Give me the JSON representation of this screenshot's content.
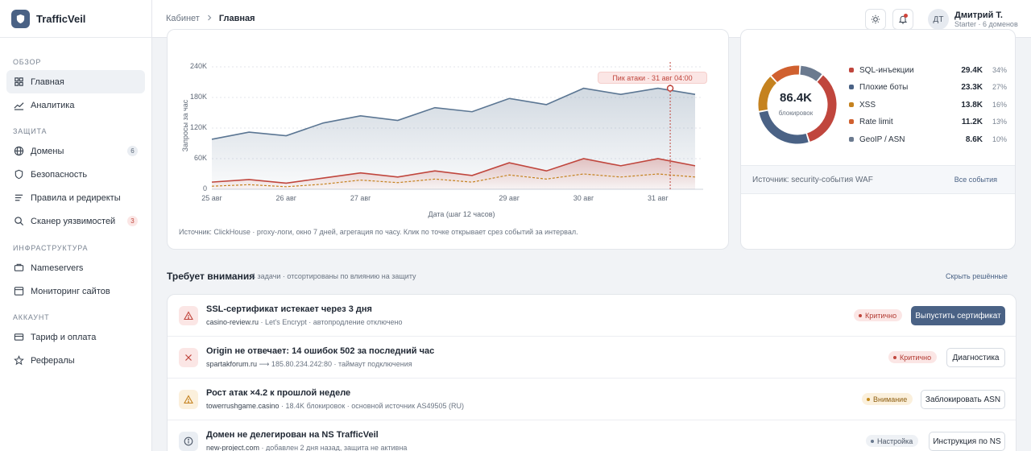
{
  "brand": {
    "name": "TrafficVeil"
  },
  "sidebar": {
    "sections": [
      {
        "title": "ОБЗОР"
      },
      {
        "title": "ЗАЩИТА"
      },
      {
        "title": "ИНФРАСТРУКТУРА"
      },
      {
        "title": "АККАУНТ"
      }
    ],
    "items": [
      {
        "label": "Главная",
        "icon": "home-icon",
        "active": true
      },
      {
        "label": "Аналитика",
        "icon": "chart-icon"
      },
      {
        "label": "Домены",
        "icon": "globe-icon",
        "badge": "6"
      },
      {
        "label": "Безопасность",
        "icon": "shield-icon"
      },
      {
        "label": "Правила и редиректы",
        "icon": "rules-icon"
      },
      {
        "label": "Сканер уязвимостей",
        "icon": "search-icon",
        "badge": "3"
      },
      {
        "label": "Nameservers",
        "icon": "server-icon"
      },
      {
        "label": "Мониторинг сайтов",
        "icon": "monitor-icon"
      },
      {
        "label": "Тариф и оплата",
        "icon": "card-icon"
      },
      {
        "label": "Рефералы",
        "icon": "star-icon"
      }
    ]
  },
  "header": {
    "breadcrumb": {
      "parent": "Кабинет",
      "current": "Главная"
    },
    "user": {
      "initials": "ДТ",
      "name": "Дмитрий Т.",
      "plan": "Starter · 6 доменов"
    }
  },
  "chart": {
    "ylabel": "Запросы за час",
    "xlabel": "Дата (шаг 12 часов)",
    "peak_label": "Пик атаки · 31 авг 04:00",
    "source": "Источник: ClickHouse · proxy-логи, окно 7 дней, агрегация по часу. Клик по точке открывает срез событий за интервал."
  },
  "chart_data": {
    "type": "area",
    "x": [
      "25 авг 00:00",
      "25 авг 12:00",
      "26 авг 00:00",
      "26 авг 12:00",
      "27 авг 00:00",
      "27 авг 12:00",
      "28 авг 00:00",
      "28 авг 12:00",
      "29 авг 00:00",
      "29 авг 12:00",
      "30 авг 00:00",
      "30 авг 12:00",
      "31 авг 00:00",
      "31 авг 12:00"
    ],
    "x_ticks": [
      "25 авг",
      "26 авг",
      "27 авг",
      "29 авг",
      "30 авг",
      "31 авг"
    ],
    "y_ticks": [
      "0",
      "60K",
      "120K",
      "180K",
      "240K"
    ],
    "ylim": [
      0,
      240000
    ],
    "series": [
      {
        "values": [
          98000,
          112000,
          105000,
          130000,
          144000,
          135000,
          160000,
          152000,
          178000,
          166000,
          198000,
          186000,
          198000,
          186000
        ],
        "color": "#5b7693"
      },
      {
        "values": [
          14000,
          19000,
          12000,
          22000,
          32000,
          24000,
          36000,
          27000,
          52000,
          36000,
          60000,
          46000,
          60000,
          46000
        ],
        "color": "#c0463d"
      },
      {
        "values": [
          6000,
          9000,
          5000,
          10000,
          18000,
          13000,
          20000,
          14000,
          28000,
          20000,
          30000,
          24000,
          30000,
          24000
        ],
        "color": "#c5821f"
      }
    ],
    "peak": {
      "x": "31 авг 04:00",
      "y": 198000
    }
  },
  "donut": {
    "total": "86.4K",
    "total_label": "блокировок",
    "items": [
      {
        "name": "SQL-инъекции",
        "value": "29.4K",
        "pct": "34%",
        "share": 34,
        "color": "#c0463d"
      },
      {
        "name": "Плохие боты",
        "value": "23.3K",
        "pct": "27%",
        "share": 27,
        "color": "#4a6285"
      },
      {
        "name": "XSS",
        "value": "13.8K",
        "pct": "16%",
        "share": 16,
        "color": "#c5821f"
      },
      {
        "name": "Rate limit",
        "value": "11.2K",
        "pct": "13%",
        "share": 13,
        "color": "#d0602f"
      },
      {
        "name": "GeoIP / ASN",
        "value": "8.6K",
        "pct": "10%",
        "share": 10,
        "color": "#6b7a8f"
      }
    ],
    "source": "Источник: security-события WAF",
    "link": "Все события"
  },
  "attention": {
    "title": "Требует внимания",
    "subtitle": "4 задачи · отсортированы по влиянию на защиту",
    "hide": "Скрыть решённые",
    "rows": [
      {
        "title": "SSL-сертификат истекает через 3 дня",
        "host": "casino-review.ru",
        "meta": " · Let's Encrypt · автопродление отключено",
        "status": "Критично",
        "action": "Выпустить сертификат"
      },
      {
        "title": "Origin не отвечает: 14 ошибок 502 за последний час",
        "host": "spartakforum.ru",
        "meta": " ⟶ 185.80.234.242:80 · таймаут подключения",
        "status": "Критично",
        "action": "Диагностика"
      },
      {
        "title": "Рост атак ×4.2 к прошлой неделе",
        "host": "towerrushgame.casino",
        "meta": " · 18.4K блокировок · основной источник AS49505 (RU)",
        "status": "Внимание",
        "action": "Заблокировать ASN"
      },
      {
        "title": "Домен не делегирован на NS TrafficVeil",
        "host": "new-project.com",
        "meta": " · добавлен 2 дня назад, защита не активна",
        "status": "Настройка",
        "action": "Инструкция по NS"
      }
    ]
  }
}
